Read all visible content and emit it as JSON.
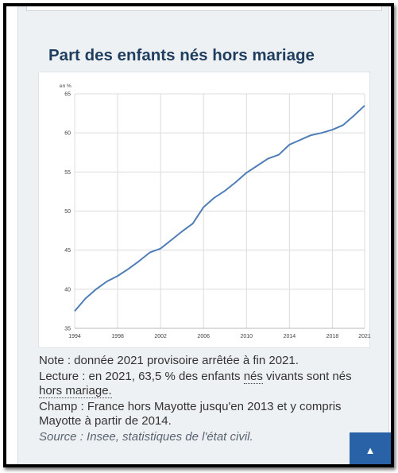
{
  "page": {
    "title": "Part des enfants nés hors mariage",
    "note": "Note : donnée 2021 provisoire arrêtée à fin 2021.",
    "lecture_prefix": "Lecture : en 2021, 63,5 % des enfants ",
    "lecture_link1": "nés",
    "lecture_mid": " vivants sont nés ",
    "lecture_link2": "hors mariage.",
    "champ": "Champ : France hors Mayotte jusqu'en 2013 et y compris Mayotte à partir de 2014.",
    "source_prefix": "Source : Insee, statistiques de ",
    "source_link": "l'état civil",
    "source_suffix": ".",
    "scroll_top_icon": "chevron-up-icon"
  },
  "chart_data": {
    "type": "line",
    "title": "Part des enfants nés hors mariage",
    "ylabel": "en %",
    "xlabel": "",
    "xlim": [
      1994,
      2021
    ],
    "ylim": [
      35,
      65
    ],
    "x_ticks": [
      1994,
      1998,
      2002,
      2006,
      2010,
      2014,
      2018,
      2021
    ],
    "y_ticks": [
      35,
      40,
      45,
      50,
      55,
      60,
      65
    ],
    "grid": true,
    "series_color": "#4f7db8",
    "series": [
      {
        "name": "",
        "x": [
          1994,
          1995,
          1996,
          1997,
          1998,
          1999,
          2000,
          2001,
          2002,
          2003,
          2004,
          2005,
          2006,
          2007,
          2008,
          2009,
          2010,
          2011,
          2012,
          2013,
          2014,
          2015,
          2016,
          2017,
          2018,
          2019,
          2020,
          2021
        ],
        "values": [
          37.2,
          38.8,
          40.0,
          41.0,
          41.7,
          42.6,
          43.6,
          44.7,
          45.2,
          46.3,
          47.4,
          48.4,
          50.5,
          51.7,
          52.6,
          53.7,
          54.9,
          55.8,
          56.7,
          57.2,
          58.5,
          59.1,
          59.7,
          60.0,
          60.4,
          61.0,
          62.2,
          63.5
        ]
      }
    ]
  }
}
